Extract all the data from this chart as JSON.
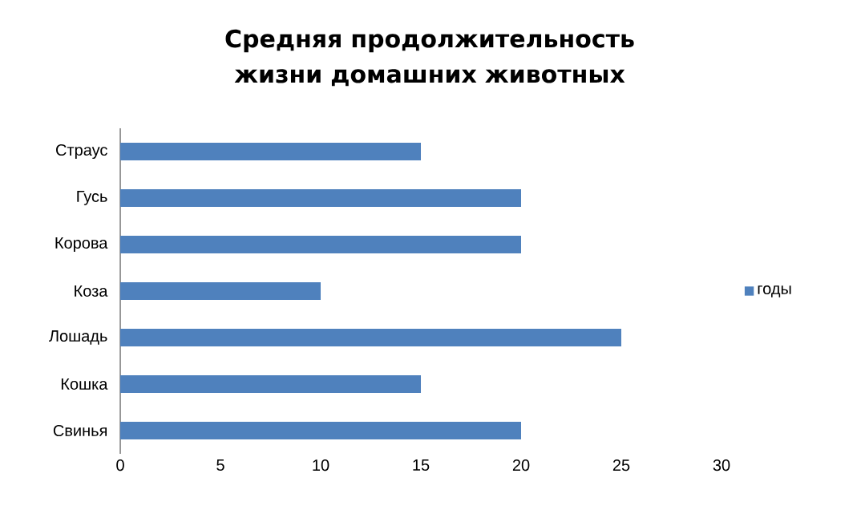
{
  "chart_data": {
    "type": "bar",
    "orientation": "horizontal",
    "title": "Средняя продолжительность жизни домашних животных",
    "categories": [
      "Страус",
      "Гусь",
      "Корова",
      "Коза",
      "Лошадь",
      "Кошка",
      "Свинья"
    ],
    "series": [
      {
        "name": "годы",
        "color": "#4f81bd",
        "values": [
          15,
          20,
          20,
          10,
          25,
          15,
          20
        ]
      }
    ],
    "xlim": [
      0,
      30
    ],
    "xticks": [
      0,
      5,
      10,
      15,
      20,
      25,
      30
    ],
    "legend": "right"
  }
}
